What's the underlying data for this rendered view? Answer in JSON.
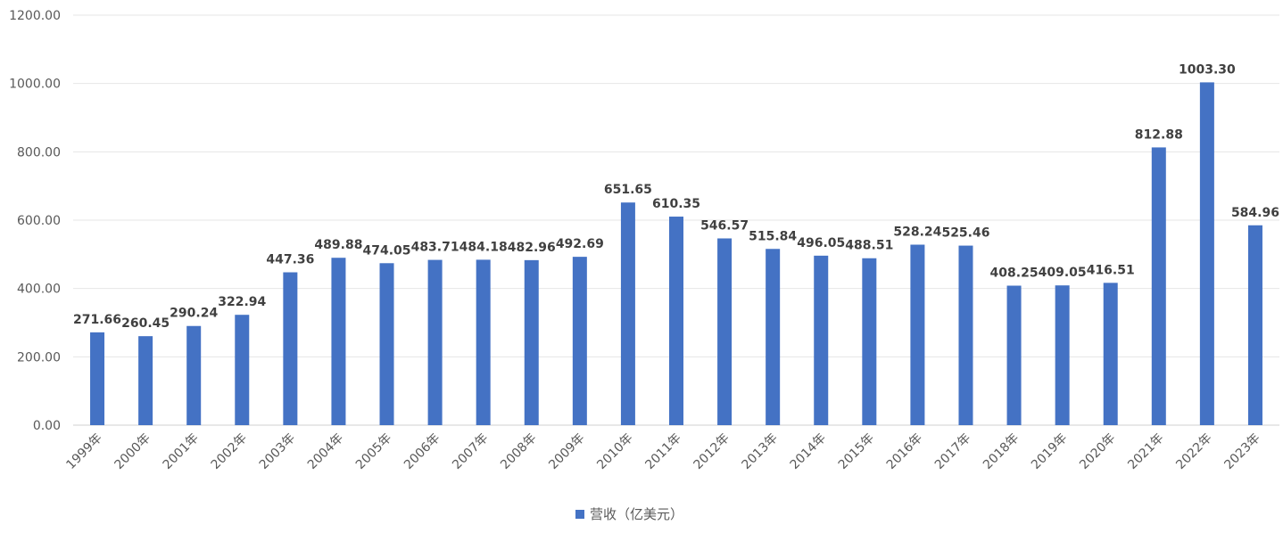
{
  "chart_data": {
    "type": "bar",
    "title": "",
    "xlabel": "",
    "ylabel": "",
    "ylim": [
      0,
      1200
    ],
    "y_ticks": [
      "0.00",
      "200.00",
      "400.00",
      "600.00",
      "800.00",
      "1000.00",
      "1200.00"
    ],
    "y_tick_values": [
      0,
      200,
      400,
      600,
      800,
      1000,
      1200
    ],
    "grid": true,
    "legend_position": "bottom",
    "categories": [
      "1999年",
      "2000年",
      "2001年",
      "2002年",
      "2003年",
      "2004年",
      "2005年",
      "2006年",
      "2007年",
      "2008年",
      "2009年",
      "2010年",
      "2011年",
      "2012年",
      "2013年",
      "2014年",
      "2015年",
      "2016年",
      "2017年",
      "2018年",
      "2019年",
      "2020年",
      "2021年",
      "2022年",
      "2023年"
    ],
    "series": [
      {
        "name": "营收（亿美元）",
        "color": "#4472C4",
        "values": [
          271.66,
          260.45,
          290.24,
          322.94,
          447.36,
          489.88,
          474.05,
          483.71,
          484.18,
          482.96,
          492.69,
          651.65,
          610.35,
          546.57,
          515.84,
          496.05,
          488.51,
          528.24,
          525.46,
          408.25,
          409.05,
          416.51,
          812.88,
          1003.3,
          584.96
        ],
        "labels": [
          "271.66",
          "260.45",
          "290.24",
          "322.94",
          "447.36",
          "489.88",
          "474.05",
          "483.71",
          "484.18",
          "482.96",
          "492.69",
          "651.65",
          "610.35",
          "546.57",
          "515.84",
          "496.05",
          "488.51",
          "528.24",
          "525.46",
          "408.25",
          "409.05",
          "416.51",
          "812.88",
          "1003.30",
          "584.96"
        ]
      }
    ],
    "colors": {
      "bar": "#4472C4",
      "grid": "#e6e6e6",
      "axis": "#d0d0d0",
      "tick_text": "#595959",
      "label_text": "#404040"
    }
  }
}
